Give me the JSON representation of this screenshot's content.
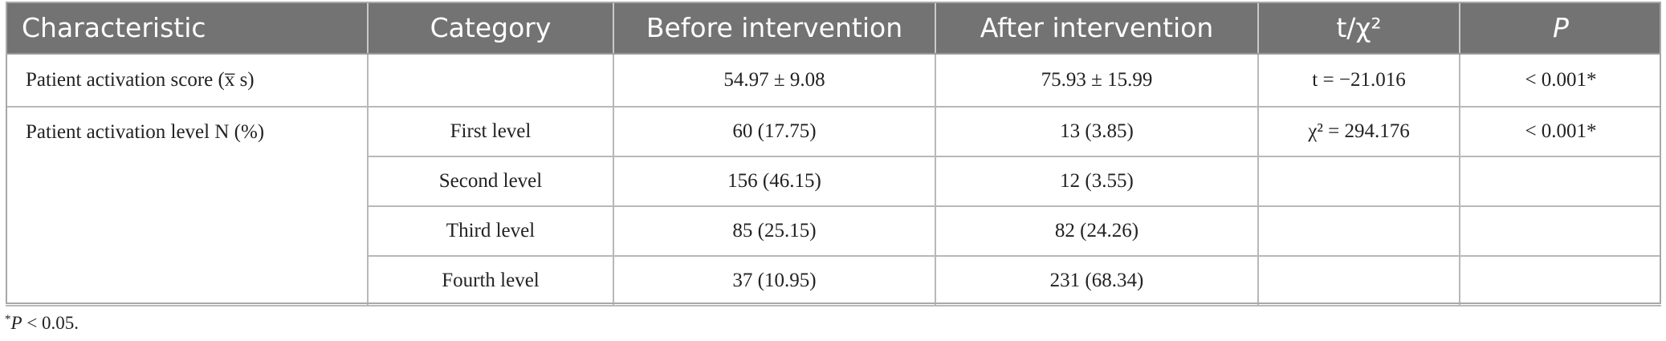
{
  "table": {
    "headers": [
      "Characteristic",
      "Category",
      "Before intervention",
      "After intervention",
      "t/χ²",
      "P"
    ],
    "rows": [
      [
        "Patient activation score (x̅  s)",
        "",
        "54.97 ± 9.08",
        "75.93 ± 15.99",
        "t = −21.016",
        "< 0.001*"
      ],
      [
        "Patient activation level N (%)",
        "First level",
        "60 (17.75)",
        "13 (3.85)",
        "χ² = 294.176",
        "<  0.001*"
      ],
      [
        "",
        "Second level",
        "156 (46.15)",
        "12 (3.55)",
        "",
        ""
      ],
      [
        "",
        "Third level",
        "85 (25.15)",
        "82 (24.26)",
        "",
        ""
      ],
      [
        "",
        "Fourth level",
        "37 (10.95)",
        "231 (68.34)",
        "",
        ""
      ]
    ]
  },
  "footnote": {
    "star": "*",
    "p": "P",
    "text": " < 0.05."
  }
}
